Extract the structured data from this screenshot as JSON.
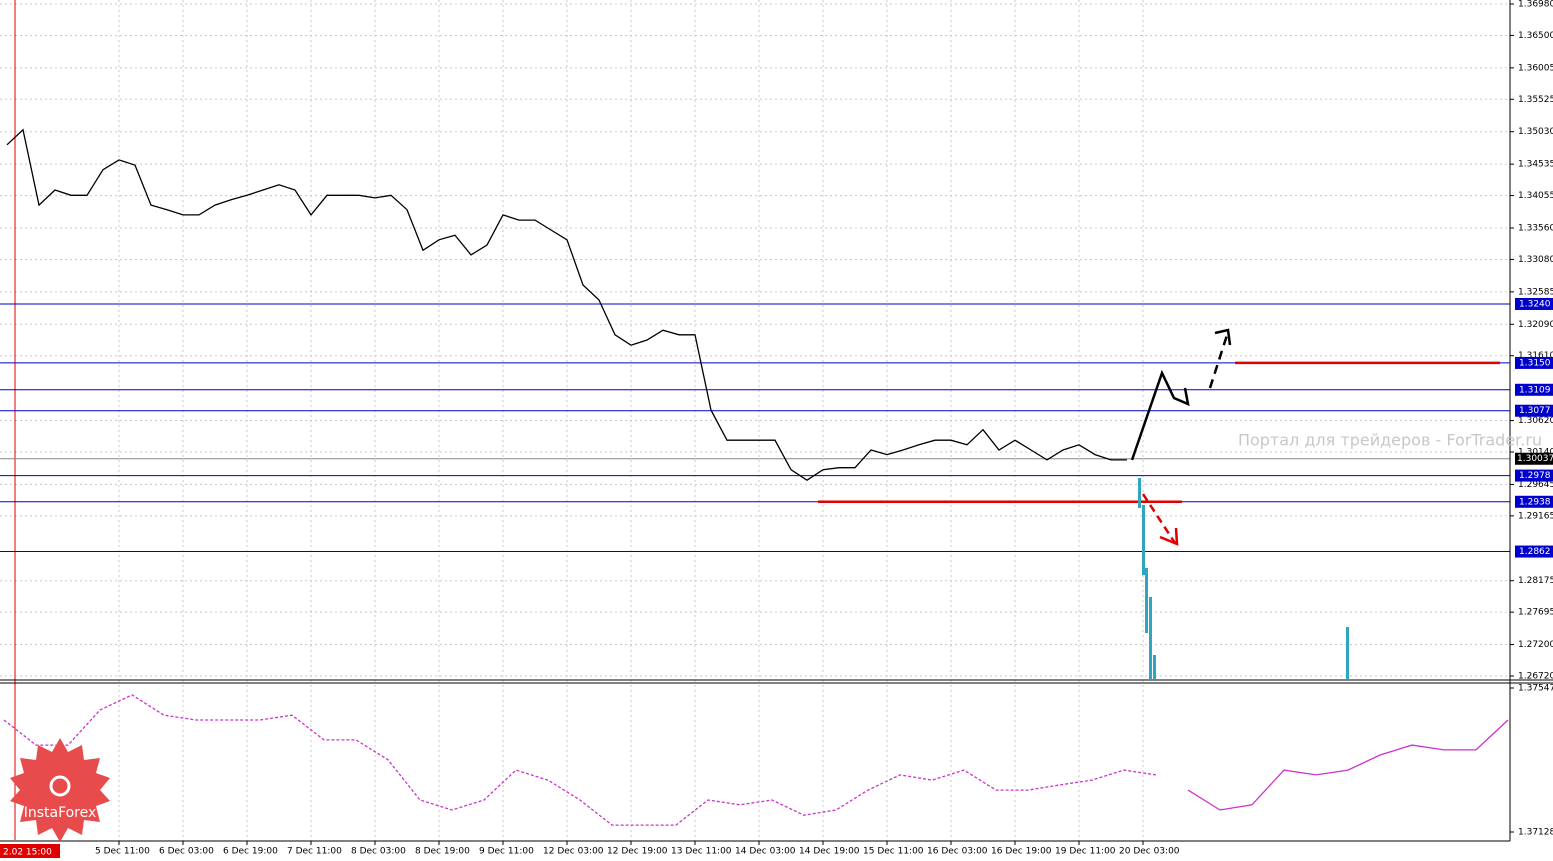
{
  "chart_data": [
    {
      "type": "line",
      "color": "#000000",
      "grid": true,
      "values": [
        1.3483,
        1.3506,
        1.3391,
        1.3414,
        1.3406,
        1.3406,
        1.3445,
        1.346,
        1.3452,
        1.3391,
        1.3384,
        1.3376,
        1.3376,
        1.3391,
        1.3399,
        1.3406,
        1.3414,
        1.3422,
        1.3414,
        1.3376,
        1.3406,
        1.3406,
        1.3406,
        1.3402,
        1.3406,
        1.3384,
        1.3322,
        1.3338,
        1.3345,
        1.3315,
        1.333,
        1.3376,
        1.3368,
        1.3368,
        1.3353,
        1.3338,
        1.3269,
        1.3246,
        1.3193,
        1.3177,
        1.3185,
        1.32,
        1.3193,
        1.3193,
        1.3078,
        1.3032,
        1.3032,
        1.3032,
        1.3032,
        1.2987,
        1.2971,
        1.2987,
        1.299,
        1.299,
        1.3017,
        1.301,
        1.3017,
        1.3025,
        1.3032,
        1.3032,
        1.3025,
        1.3048,
        1.3017,
        1.3032,
        1.3017,
        1.3002,
        1.3017,
        1.3025,
        1.301,
        1.3002,
        1.3002
      ],
      "xlim": [
        -0.4375,
        93.625
      ],
      "xticks": [
        {
          "value": 7,
          "label": "5 Dec 11:00"
        },
        {
          "value": 11,
          "label": "6 Dec 03:00"
        },
        {
          "value": 15,
          "label": "6 Dec 19:00"
        },
        {
          "value": 19,
          "label": "7 Dec 11:00"
        },
        {
          "value": 23,
          "label": "8 Dec 03:00"
        },
        {
          "value": 27,
          "label": "8 Dec 19:00"
        },
        {
          "value": 31,
          "label": "9 Dec 11:00"
        },
        {
          "value": 35,
          "label": "12 Dec 03:00"
        },
        {
          "value": 39,
          "label": "12 Dec 19:00"
        },
        {
          "value": 43,
          "label": "13 Dec 11:00"
        },
        {
          "value": 47,
          "label": "14 Dec 03:00"
        },
        {
          "value": 51,
          "label": "14 Dec 19:00"
        },
        {
          "value": 55,
          "label": "15 Dec 11:00"
        },
        {
          "value": 59,
          "label": "16 Dec 03:00"
        },
        {
          "value": 63,
          "label": "16 Dec 19:00"
        },
        {
          "value": 67,
          "label": "19 Dec 11:00"
        },
        {
          "value": 71,
          "label": "20 Dec 03:00"
        }
      ],
      "ylim": [
        1.2672,
        1.3698
      ],
      "yticks": [
        {
          "value": 1.3698,
          "label": "1.36980"
        },
        {
          "value": 1.365,
          "label": "1.36500"
        },
        {
          "value": 1.36005,
          "label": "1.36005"
        },
        {
          "value": 1.35525,
          "label": "1.35525"
        },
        {
          "value": 1.3503,
          "label": "1.35030"
        },
        {
          "value": 1.34535,
          "label": "1.34535"
        },
        {
          "value": 1.34055,
          "label": "1.34055"
        },
        {
          "value": 1.3356,
          "label": "1.33560"
        },
        {
          "value": 1.3308,
          "label": "1.33080"
        },
        {
          "value": 1.32585,
          "label": "1.32585"
        },
        {
          "value": 1.3209,
          "label": "1.32090"
        },
        {
          "value": 1.3161,
          "label": "1.31610"
        },
        {
          "value": 1.3062,
          "label": "1.30620"
        },
        {
          "value": 1.3014,
          "label": "1.30140"
        },
        {
          "value": 1.29645,
          "label": "1.29645"
        },
        {
          "value": 1.29165,
          "label": "1.29165"
        },
        {
          "value": 1.28175,
          "label": "1.28175"
        },
        {
          "value": 1.27695,
          "label": "1.27695"
        },
        {
          "value": 1.272,
          "label": "1.27200"
        },
        {
          "value": 1.2672,
          "label": "1.26720"
        }
      ],
      "levels": [
        {
          "value": 1.324,
          "label": "1.3240"
        },
        {
          "value": 1.315,
          "label": "1.3150"
        },
        {
          "value": 1.3109,
          "label": "1.3109"
        },
        {
          "value": 1.3077,
          "label": "1.3077"
        },
        {
          "value": 1.2978,
          "label": "1.2978"
        },
        {
          "value": 1.2938,
          "label": "1.2938"
        },
        {
          "value": 1.2862,
          "label": "1.2862"
        }
      ],
      "level_color": "#0000cc",
      "price": 1.30037,
      "time_label": "2.02 15:00",
      "watermark": "Портал для трейдеров - ForTrader.ru",
      "logo": "InstaForex"
    },
    {
      "type": "line",
      "color": "#cc33cc",
      "values": [
        1.37454,
        1.37381,
        1.37381,
        1.37483,
        1.37527,
        1.37468,
        1.37454,
        1.37454,
        1.37454,
        1.37468,
        1.37396,
        1.37396,
        1.37338,
        1.37221,
        1.37192,
        1.37221,
        1.37308,
        1.37279,
        1.37221,
        1.37148,
        1.37148,
        1.37148,
        1.37221,
        1.37207,
        1.37221,
        1.37177,
        1.37192,
        1.3725,
        1.37294,
        1.37279,
        1.37308,
        1.3725,
        1.3725,
        1.37265,
        1.37279,
        1.37308,
        1.37294,
        1.3725,
        1.37192,
        1.37207,
        1.37308,
        1.37294,
        1.37308,
        1.37352,
        1.37381,
        1.37367,
        1.37367,
        1.37454
      ],
      "xlim": [
        0,
        47
      ],
      "ylim": [
        1.37128,
        1.37547
      ],
      "yticks": [
        1.37547,
        1.37128
      ]
    }
  ]
}
